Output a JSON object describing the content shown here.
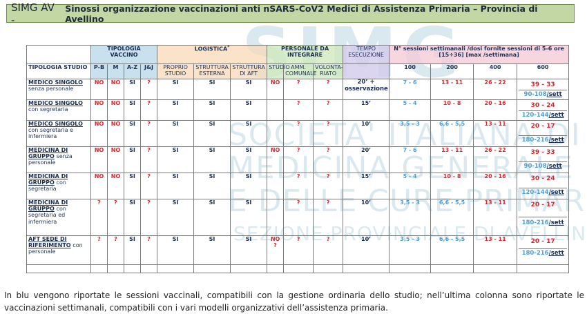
{
  "title": {
    "app": "SIMG AV -",
    "text": "Sinossi organizzazione vaccinazioni anti nSARS-CoV2 Medici di Assistenza Primaria – Provincia di Avellino"
  },
  "watermark": {
    "line1": "SIMG",
    "line2": "SOCIETA' ITALIANA DI",
    "line3": "MEDICINA GENERALE",
    "line4": "E DELLE CURE PRIMARIE",
    "line5": "SEZIONE PROVINCIALE DI AVELLINO"
  },
  "colors": {
    "no": "#e0242a",
    "si": "#1c2f52",
    "blue": "#4a9fd8",
    "title_bg": "#c3d7a4"
  },
  "header": {
    "tipologia_vaccino": "TIPOLOGIA VACCINO",
    "logistica": "LOGISTICA",
    "logistica_mark": "*",
    "personale": "PERSONALE DA INTEGRARE",
    "tempo": "TEMPO ESECUZIONE",
    "sessioni": "N° sessioni settimanali /dosi fornite sessioni di 5-6 ore [15÷36] [max /settimana]",
    "tipologia_studio": "TIPOLOGIA STUDIO",
    "vaccini": [
      "P-B",
      "M",
      "A-Z",
      "J&J"
    ],
    "logistica_cols": [
      "PROPRIO STUDIO",
      "STRUTTURA ESTERNA",
      "STRUTTURA DI AFT"
    ],
    "personale_cols": [
      "STUDIO",
      "AMM. COMUNALE",
      "VOLONTA-RIATO"
    ],
    "doses": [
      "100",
      "200",
      "400",
      "600"
    ]
  },
  "rows": [
    {
      "label_u": "MEDICO SINGOLO",
      "label_rest": "senza personale",
      "v": [
        "NO",
        "NO",
        "SI",
        "?"
      ],
      "l": [
        "SI",
        "SI",
        "SI"
      ],
      "p": [
        "NO",
        "?",
        "?"
      ],
      "tempo": "20’ + osservazione",
      "s100": "7 - 6",
      "s200": "13 - 11",
      "s400": "26 - 22",
      "s600": "39 - 33",
      "w600": "90-108",
      "unit": "/sett"
    },
    {
      "label_u": "MEDICO SINGOLO",
      "label_rest": "con segretaria",
      "v": [
        "NO",
        "NO",
        "SI",
        "?"
      ],
      "l": [
        "SI",
        "SI",
        "SI"
      ],
      "p": [
        "",
        "?",
        "?"
      ],
      "tempo": "15’",
      "s100": "5 - 4",
      "s200": "10 - 8",
      "s400": "20 - 16",
      "s600": "30 - 24",
      "w600": "120-144",
      "unit": "/sett"
    },
    {
      "label_u": "MEDICO SINGOLO",
      "label_rest": "con segretaria e infermiera",
      "v": [
        "NO",
        "NO",
        "SI",
        "?"
      ],
      "l": [
        "SI",
        "SI",
        "SI"
      ],
      "p": [
        "",
        "?",
        "?"
      ],
      "tempo": "10’",
      "s100": "3,5 - 3",
      "s200": "6,6 - 5,5",
      "s400": "13 - 11",
      "s600": "20 - 17",
      "w600": "180-216",
      "unit": "/sett"
    },
    {
      "label_u": "MEDICINA DI GRUPPO",
      "label_rest": "senza personale",
      "v": [
        "NO",
        "NO",
        "SI",
        "?"
      ],
      "l": [
        "SI",
        "SI",
        "SI"
      ],
      "p": [
        "NO",
        "?",
        "?"
      ],
      "tempo": "20’",
      "s100": "7 - 6",
      "s200": "13 - 11",
      "s400": "26 - 22",
      "s600": "39 - 33",
      "w600": "90-108",
      "unit": "/sett"
    },
    {
      "label_u": "MEDICINA DI GRUPPO",
      "label_rest": "con segretaria",
      "v": [
        "NO",
        "NO",
        "SI",
        "?"
      ],
      "l": [
        "SI",
        "SI",
        "SI"
      ],
      "p": [
        "",
        "?",
        "?"
      ],
      "tempo": "15’",
      "s100": "5 - 4",
      "s200": "10 - 8",
      "s400": "20 - 16",
      "s600": "30 - 24",
      "w600": "120-144",
      "unit": "/sett"
    },
    {
      "label_u": "MEDICINA DI GRUPPO",
      "label_rest": "con segretaria ed infermiera",
      "v": [
        "?",
        "?",
        "SI",
        "?"
      ],
      "l": [
        "SI",
        "SI",
        "SI"
      ],
      "p": [
        "",
        "?",
        "?"
      ],
      "tempo": "10’",
      "s100": "3,5 - 3",
      "s200": "6,6 - 5,5",
      "s400": "13 - 11",
      "s600": "20 - 17",
      "w600": "180-216",
      "unit": "/sett"
    },
    {
      "label_u": "AFT SEDE DI RIFERIMENTO",
      "label_rest": "con personale",
      "v": [
        "?",
        "?",
        "SI",
        "?"
      ],
      "l": [
        "SI",
        "SI",
        "SI"
      ],
      "p": [
        "NO ?",
        "?",
        "?"
      ],
      "tempo": "10’",
      "s100": "3,5 - 3",
      "s200": "6,6 - 5,5",
      "s400": "13 - 11",
      "s600": "20 - 17",
      "w600": "180-216",
      "unit": "/sett"
    }
  ],
  "footnote": "In blu vengono riportate le sessioni vaccinali, compatibili con la gestione ordinaria dello studio; nell’ultima colonna sono riportate le vaccinazioni settimanali, compatibili con i vari modelli organizzativi dell’assistenza primaria."
}
